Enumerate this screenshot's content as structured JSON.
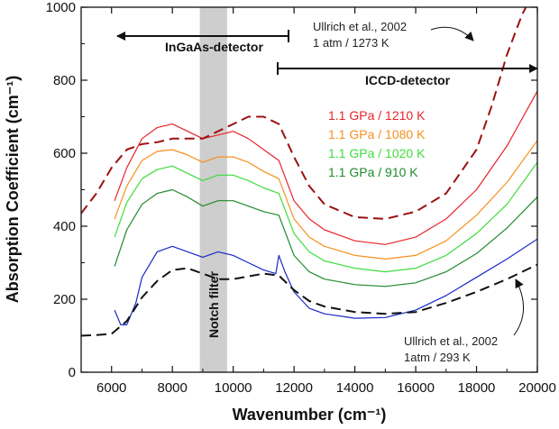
{
  "chart_data": {
    "type": "line",
    "xlabel": "Wavenumber (cm⁻¹)",
    "ylabel": "Absorption Coefficient (cm⁻¹)",
    "xlim": [
      5000,
      20000
    ],
    "ylim": [
      0,
      1000
    ],
    "xticks": [
      6000,
      8000,
      10000,
      12000,
      14000,
      16000,
      18000,
      20000
    ],
    "yticks": [
      0,
      200,
      400,
      600,
      800,
      1000
    ],
    "grid": false,
    "legend_position": "center",
    "shaded_band": {
      "x": [
        8900,
        9800
      ],
      "label": "Notch filter"
    },
    "annotations": {
      "ingaas": "InGaAs-detector",
      "iccd": "ICCD-detector",
      "ref_hot_line1": "Ullrich et al., 2002",
      "ref_hot_line2": "1 atm / 1273 K",
      "ref_cold_line1": "Ullrich et al., 2002",
      "ref_cold_line2": "1atm / 293 K"
    },
    "series": [
      {
        "name": "1.1 GPa / 1210 K",
        "color": "#e8242b",
        "style": "solid",
        "x": [
          6100,
          6500,
          7000,
          7500,
          8000,
          8500,
          9000,
          9500,
          10000,
          10500,
          11000,
          11500,
          12000,
          12500,
          13000,
          14000,
          15000,
          16000,
          17000,
          18000,
          19000,
          20000
        ],
        "y": [
          470,
          560,
          640,
          670,
          680,
          660,
          640,
          650,
          660,
          640,
          610,
          580,
          470,
          420,
          390,
          360,
          350,
          370,
          420,
          500,
          620,
          770
        ]
      },
      {
        "name": "1.1 GPa / 1080 K",
        "color": "#f5901e",
        "style": "solid",
        "x": [
          6100,
          6500,
          7000,
          7500,
          8000,
          8500,
          9000,
          9500,
          10000,
          10500,
          11000,
          11500,
          12000,
          12500,
          13000,
          14000,
          15000,
          16000,
          17000,
          18000,
          19000,
          20000
        ],
        "y": [
          420,
          510,
          580,
          605,
          610,
          595,
          575,
          590,
          590,
          575,
          550,
          530,
          420,
          370,
          345,
          320,
          310,
          320,
          360,
          430,
          520,
          635
        ]
      },
      {
        "name": "1.1 GPa / 1020 K",
        "color": "#3ddc3d",
        "style": "solid",
        "x": [
          6100,
          6500,
          7000,
          7500,
          8000,
          8500,
          9000,
          9500,
          10000,
          10500,
          11000,
          11500,
          12000,
          12500,
          13000,
          14000,
          15000,
          16000,
          17000,
          18000,
          19000,
          20000
        ],
        "y": [
          370,
          465,
          530,
          555,
          565,
          545,
          525,
          540,
          540,
          525,
          505,
          490,
          380,
          330,
          305,
          285,
          275,
          285,
          320,
          380,
          460,
          575
        ]
      },
      {
        "name": "1.1 GPa / 910 K",
        "color": "#1f8a2a",
        "style": "solid",
        "x": [
          6100,
          6500,
          7000,
          7500,
          8000,
          8500,
          9000,
          9500,
          10000,
          10500,
          11000,
          11500,
          12000,
          12500,
          13000,
          14000,
          15000,
          16000,
          17000,
          18000,
          19000,
          20000
        ],
        "y": [
          290,
          390,
          460,
          490,
          500,
          480,
          455,
          470,
          470,
          455,
          440,
          430,
          320,
          275,
          255,
          240,
          235,
          245,
          275,
          325,
          395,
          480
        ]
      },
      {
        "name": "",
        "color": "#1a28c8",
        "style": "solid",
        "x": [
          6100,
          6300,
          6500,
          6800,
          7000,
          7500,
          8000,
          8500,
          9000,
          9500,
          10000,
          10500,
          11000,
          11400,
          11500,
          11700,
          12000,
          12500,
          13000,
          14000,
          15000,
          16000,
          17000,
          18000,
          19000,
          20000
        ],
        "y": [
          170,
          130,
          130,
          190,
          260,
          330,
          345,
          330,
          315,
          330,
          320,
          300,
          280,
          270,
          320,
          275,
          220,
          175,
          160,
          148,
          150,
          170,
          210,
          260,
          310,
          365
        ]
      },
      {
        "name": "Ullrich et al., 2002 — 1 atm / 1273 K",
        "color": "#9c1010",
        "style": "dashed",
        "x": [
          5000,
          5500,
          6000,
          6500,
          7000,
          7500,
          8000,
          9000,
          10000,
          10500,
          11000,
          11500,
          12000,
          12500,
          13000,
          14000,
          15000,
          16000,
          17000,
          18000,
          18500,
          19000,
          19500,
          20000
        ],
        "y": [
          435,
          490,
          560,
          610,
          625,
          630,
          640,
          640,
          680,
          700,
          700,
          680,
          590,
          510,
          460,
          425,
          420,
          440,
          490,
          610,
          730,
          870,
          980,
          1060
        ]
      },
      {
        "name": "Ullrich et al., 2002 — 1atm / 293 K",
        "color": "#111111",
        "style": "dashed",
        "x": [
          5000,
          5500,
          6000,
          6500,
          7000,
          7500,
          8000,
          8500,
          9000,
          9500,
          10000,
          11000,
          11500,
          12000,
          12500,
          13000,
          14000,
          15000,
          16000,
          17000,
          18000,
          19000,
          20000
        ],
        "y": [
          100,
          102,
          105,
          140,
          205,
          250,
          280,
          285,
          270,
          255,
          255,
          270,
          265,
          225,
          195,
          180,
          165,
          160,
          165,
          190,
          220,
          255,
          295
        ]
      }
    ]
  }
}
